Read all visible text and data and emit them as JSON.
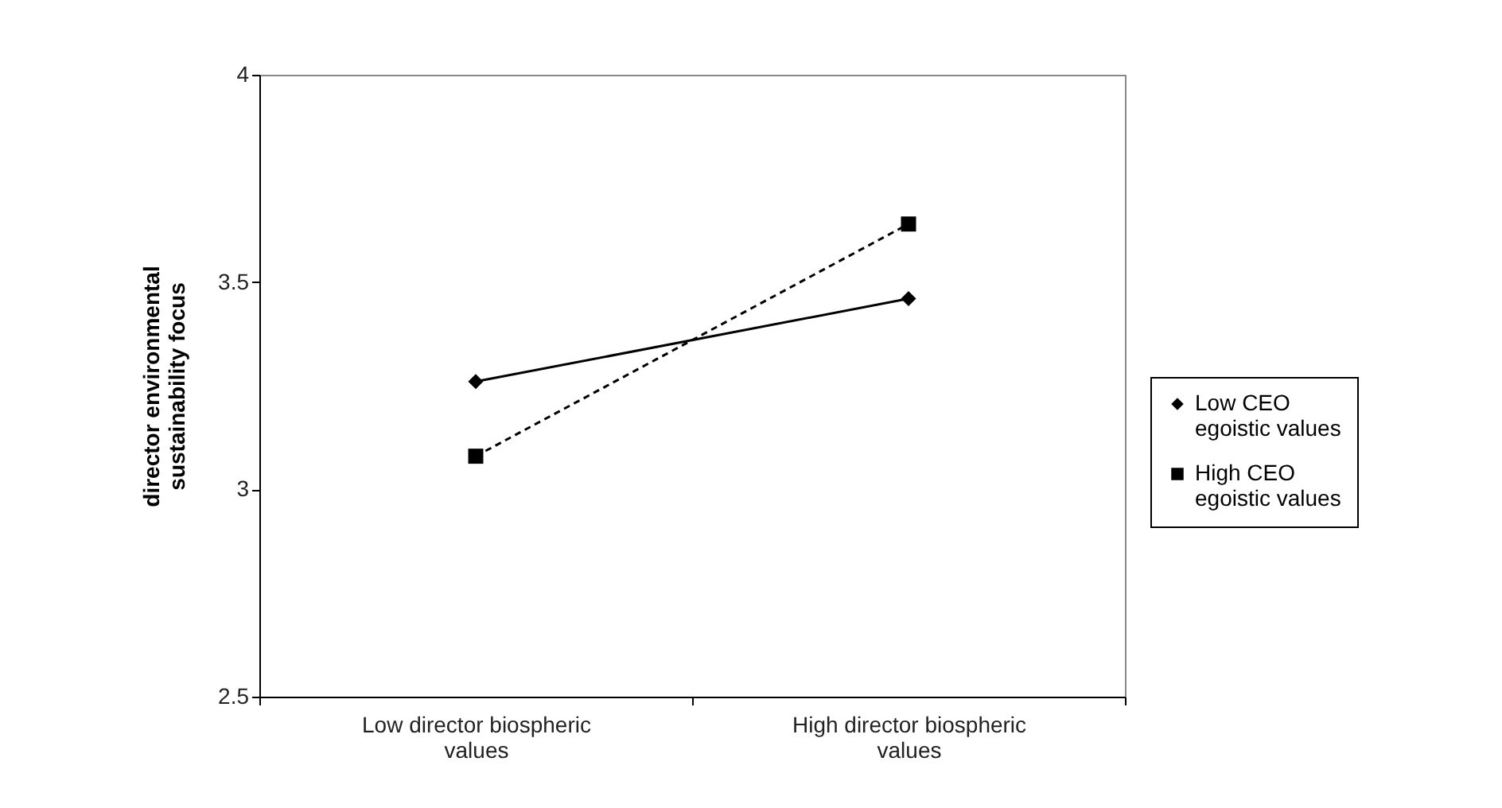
{
  "chart_data": {
    "type": "line",
    "ylabel": "director environmental sustainability focus",
    "categories": [
      "Low director biospheric values",
      "High director biospheric values"
    ],
    "series": [
      {
        "name": "Low CEO egoistic values",
        "color": "#000000",
        "values": [
          3.26,
          3.46
        ],
        "marker": "diamond",
        "line_style": "solid"
      },
      {
        "name": "High CEO egoistic values",
        "color": "#000000",
        "values": [
          3.08,
          3.64
        ],
        "marker": "square",
        "line_style": "dashed"
      }
    ],
    "ylim": [
      2.5,
      4
    ],
    "yticks": [
      2.5,
      3,
      3.5,
      4
    ],
    "grid": false,
    "legend": "right"
  }
}
